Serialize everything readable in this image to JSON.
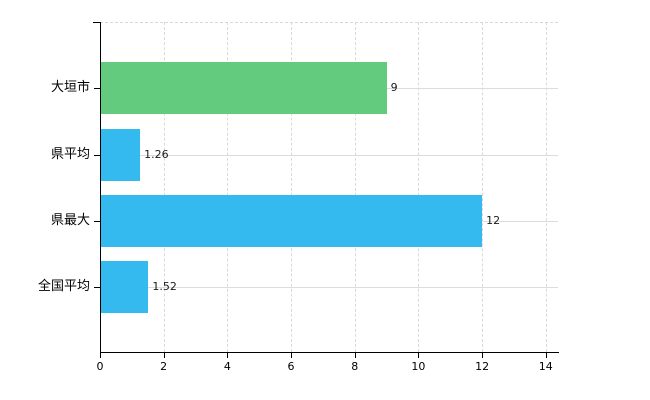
{
  "chart_data": {
    "type": "bar",
    "orientation": "horizontal",
    "title": "",
    "subtitle": "",
    "xlabel": "",
    "ylabel": "",
    "categories": [
      "大垣市",
      "県平均",
      "県最大",
      "全国平均"
    ],
    "values": [
      9,
      1.26,
      12,
      1.52
    ],
    "value_labels": [
      "9",
      "1.26",
      "12",
      "1.52"
    ],
    "series": [
      {
        "name": "",
        "values": [
          9,
          1.26,
          12,
          1.52
        ]
      }
    ],
    "bar_colors": [
      "#63cb7e",
      "#34baef",
      "#34baef",
      "#34baef"
    ],
    "x_ticks": [
      "0",
      "2",
      "4",
      "6",
      "8",
      "10",
      "12",
      "14"
    ],
    "x_tick_values": [
      0,
      2,
      4,
      6,
      8,
      10,
      12,
      14
    ],
    "xlim": [
      0,
      14
    ],
    "grid": "on",
    "legend": "none",
    "colors": {
      "green_bar": "#63cb7e",
      "blue_bar": "#34baef",
      "axis": "#000000",
      "gridline": "#d9d9d9",
      "text": "#000000",
      "background": "#ffffff"
    }
  }
}
